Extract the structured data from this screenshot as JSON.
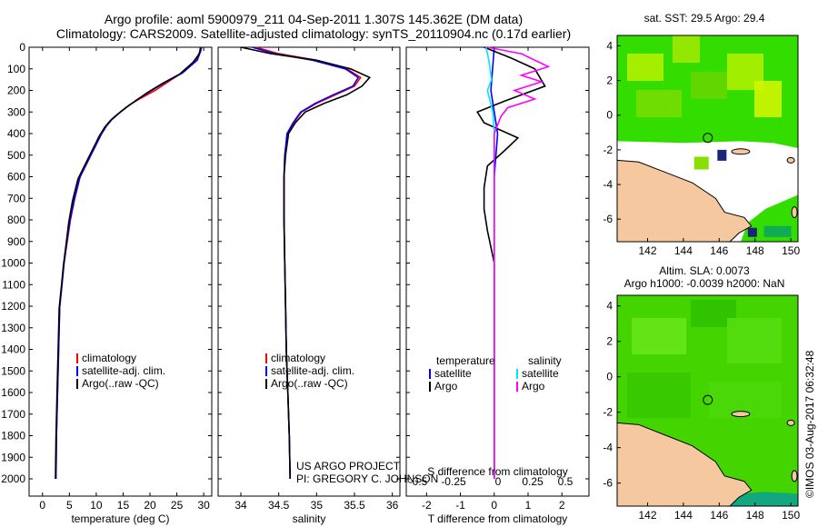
{
  "title_line1": "Argo profile: aoml 5900979_211 04-Sep-2011 1.307S 145.362E (DM data)",
  "title_line2": "Climatology: CARS2009. Satellite-adjusted climatology: synTS_20110904.nc (0.17d earlier)",
  "project_line1": "US ARGO PROJECT",
  "project_line2": "PI: GREGORY C. JOHNSON",
  "watermark": "©IMOS 03-Aug-2017 06:32:48",
  "colors": {
    "climatology": "#ff0000",
    "satellite": "#0000ff",
    "argo": "#000000",
    "salinity_satellite": "#00e5ff",
    "salinity_argo": "#ff00ff",
    "land": "#f5c8a0",
    "ocean_green": "#33cc00"
  },
  "chart_data": [
    {
      "type": "line",
      "xlabel": "temperature (deg C)",
      "ylabel": "",
      "xlim": [
        -2.5,
        31.5
      ],
      "ylim": [
        2080,
        0
      ],
      "xticks": [
        0,
        5,
        10,
        15,
        20,
        25,
        30
      ],
      "yticks": [
        0,
        100,
        200,
        300,
        400,
        500,
        600,
        700,
        800,
        900,
        1000,
        1100,
        1200,
        1300,
        1400,
        1500,
        1600,
        1700,
        1800,
        1900,
        2000
      ],
      "legend": [
        "climatology",
        "satellite-adj. clim.",
        "Argo(..raw -QC)"
      ],
      "series": [
        {
          "name": "climatology",
          "x": [
            29.5,
            29.3,
            28.5,
            26.5,
            24.0,
            21.0,
            18.0,
            16.0,
            14.5,
            13.0,
            12.0,
            11.0,
            10.0,
            9.0,
            8.0,
            7.0,
            6.0,
            5.2,
            4.6,
            4.0,
            3.6,
            3.2,
            3.0,
            2.8,
            2.6,
            2.5
          ],
          "y": [
            0,
            20,
            60,
            110,
            150,
            200,
            240,
            270,
            300,
            330,
            360,
            400,
            450,
            500,
            550,
            600,
            700,
            800,
            900,
            1000,
            1100,
            1200,
            1400,
            1600,
            1800,
            2000
          ]
        },
        {
          "name": "satellite-adj. clim.",
          "x": [
            29.6,
            29.4,
            28.8,
            26.0,
            23.0,
            20.0,
            17.5,
            15.8,
            14.3,
            12.9,
            11.9,
            10.9,
            9.9,
            8.9,
            7.9,
            6.9,
            5.9,
            5.1,
            4.5,
            4.0,
            3.6,
            3.2,
            3.0,
            2.8,
            2.6,
            2.5
          ],
          "y": [
            0,
            20,
            60,
            120,
            160,
            205,
            245,
            275,
            305,
            335,
            365,
            405,
            455,
            505,
            555,
            605,
            705,
            805,
            905,
            1005,
            1105,
            1205,
            1405,
            1605,
            1805,
            2000
          ]
        },
        {
          "name": "Argo(..raw -QC)",
          "x": [
            29.4,
            29.2,
            28.0,
            25.5,
            22.5,
            19.5,
            17.2,
            15.5,
            14.0,
            12.6,
            11.6,
            10.6,
            9.6,
            8.6,
            7.6,
            6.6,
            5.6,
            4.9,
            4.4,
            3.9,
            3.5,
            3.1,
            2.9,
            2.7,
            2.5,
            2.4
          ],
          "y": [
            0,
            30,
            70,
            125,
            165,
            210,
            250,
            280,
            310,
            340,
            370,
            410,
            460,
            510,
            560,
            610,
            710,
            810,
            910,
            1010,
            1110,
            1210,
            1410,
            1610,
            1810,
            2000
          ]
        }
      ]
    },
    {
      "type": "line",
      "xlabel": "salinity",
      "ylabel": "",
      "xlim": [
        33.7,
        36.1
      ],
      "ylim": [
        2080,
        0
      ],
      "xticks": [
        34,
        34.5,
        35,
        35.5,
        36
      ],
      "legend": [
        "climatology",
        "satellite-adj. clim.",
        "Argo(..raw -QC)"
      ],
      "series": [
        {
          "name": "climatology",
          "x": [
            34.2,
            34.5,
            35.0,
            35.4,
            35.58,
            35.5,
            35.25,
            35.0,
            34.8,
            34.7,
            34.62,
            34.58,
            34.57,
            34.57,
            34.58,
            34.59,
            34.6,
            34.62,
            34.64,
            34.65
          ],
          "y": [
            0,
            30,
            60,
            100,
            140,
            180,
            220,
            260,
            300,
            350,
            400,
            500,
            600,
            800,
            1000,
            1200,
            1400,
            1600,
            1800,
            2000
          ]
        },
        {
          "name": "satellite-adj. clim.",
          "x": [
            34.15,
            34.45,
            34.95,
            35.38,
            35.55,
            35.48,
            35.22,
            34.98,
            34.79,
            34.69,
            34.61,
            34.58,
            34.57,
            34.57,
            34.58,
            34.59,
            34.6,
            34.62,
            34.64,
            34.65
          ],
          "y": [
            0,
            30,
            60,
            100,
            140,
            180,
            220,
            260,
            300,
            350,
            400,
            500,
            600,
            800,
            1000,
            1200,
            1400,
            1600,
            1800,
            2000
          ]
        },
        {
          "name": "Argo(..raw -QC)",
          "x": [
            34.0,
            34.4,
            35.0,
            35.45,
            35.7,
            35.6,
            35.4,
            35.1,
            34.85,
            34.72,
            34.63,
            34.59,
            34.57,
            34.57,
            34.58,
            34.59,
            34.6,
            34.62,
            34.64,
            34.65
          ],
          "y": [
            0,
            30,
            60,
            100,
            140,
            180,
            220,
            260,
            300,
            350,
            400,
            500,
            600,
            800,
            1000,
            1200,
            1400,
            1600,
            1800,
            2000
          ]
        }
      ]
    },
    {
      "type": "line",
      "xlabel_top": "S difference from climatology",
      "xlabel": "T difference from climatology",
      "xlim": [
        -2.6,
        2.8
      ],
      "ylim": [
        2080,
        0
      ],
      "xticks_top": [
        -0.5,
        -0.25,
        0,
        0.25,
        0.5
      ],
      "xtick_labels_top": [
        "-0.5",
        "-0.25",
        "0",
        "0.25",
        "0.5"
      ],
      "xticks": [
        -2,
        -1,
        0,
        1,
        2
      ],
      "legend_headers": [
        "temperature",
        "salinity"
      ],
      "legend": [
        "satellite",
        "Argo",
        "satellite",
        "Argo"
      ],
      "series": [
        {
          "name": "satellite",
          "x": [
            0,
            -0.1,
            0.1,
            0,
            0,
            0,
            0,
            0,
            0,
            0
          ],
          "y": [
            0,
            200,
            400,
            600,
            800,
            1000,
            1200,
            1500,
            1800,
            2000
          ]
        },
        {
          "name": "Argo",
          "x": [
            -0.3,
            0.5,
            1.2,
            1.5,
            0.3,
            -0.5,
            -0.3,
            0.7,
            0.3,
            -0.2,
            -0.3,
            -0.3,
            -0.2,
            0.0,
            0.0,
            0.0,
            0.0
          ],
          "y": [
            0,
            50,
            100,
            180,
            250,
            300,
            350,
            420,
            480,
            550,
            650,
            750,
            850,
            1000,
            1200,
            1500,
            2000
          ]
        },
        {
          "name": "satellite",
          "x": [
            -0.06,
            -0.04,
            -0.02,
            -0.05,
            -0.01,
            0.0,
            0.0,
            0.0,
            0.0,
            0.0
          ],
          "y": [
            0,
            60,
            150,
            200,
            300,
            400,
            600,
            1000,
            1500,
            2000
          ]
        },
        {
          "name": "Argo",
          "x": [
            -0.05,
            0.2,
            0.4,
            0.2,
            0.35,
            0.15,
            0.3,
            0.1,
            0.05,
            0.0,
            0.0,
            0.0,
            0.0,
            0.0
          ],
          "y": [
            0,
            30,
            90,
            130,
            160,
            200,
            240,
            280,
            320,
            400,
            600,
            900,
            1400,
            2000
          ]
        }
      ]
    }
  ],
  "maps": [
    {
      "title": "sat. SST: 29.5 Argo: 29.4",
      "xticks": [
        142,
        144,
        146,
        148,
        150
      ],
      "yticks": [
        4,
        2,
        0,
        -2,
        -4,
        -6
      ]
    },
    {
      "title_line1": "Altim. SLA: 0.0073",
      "title_line2": "Argo h1000: -0.0039 h2000: NaN",
      "xticks": [
        142,
        144,
        146,
        148,
        150
      ],
      "yticks": [
        4,
        2,
        0,
        -2,
        -4,
        -6
      ]
    }
  ]
}
